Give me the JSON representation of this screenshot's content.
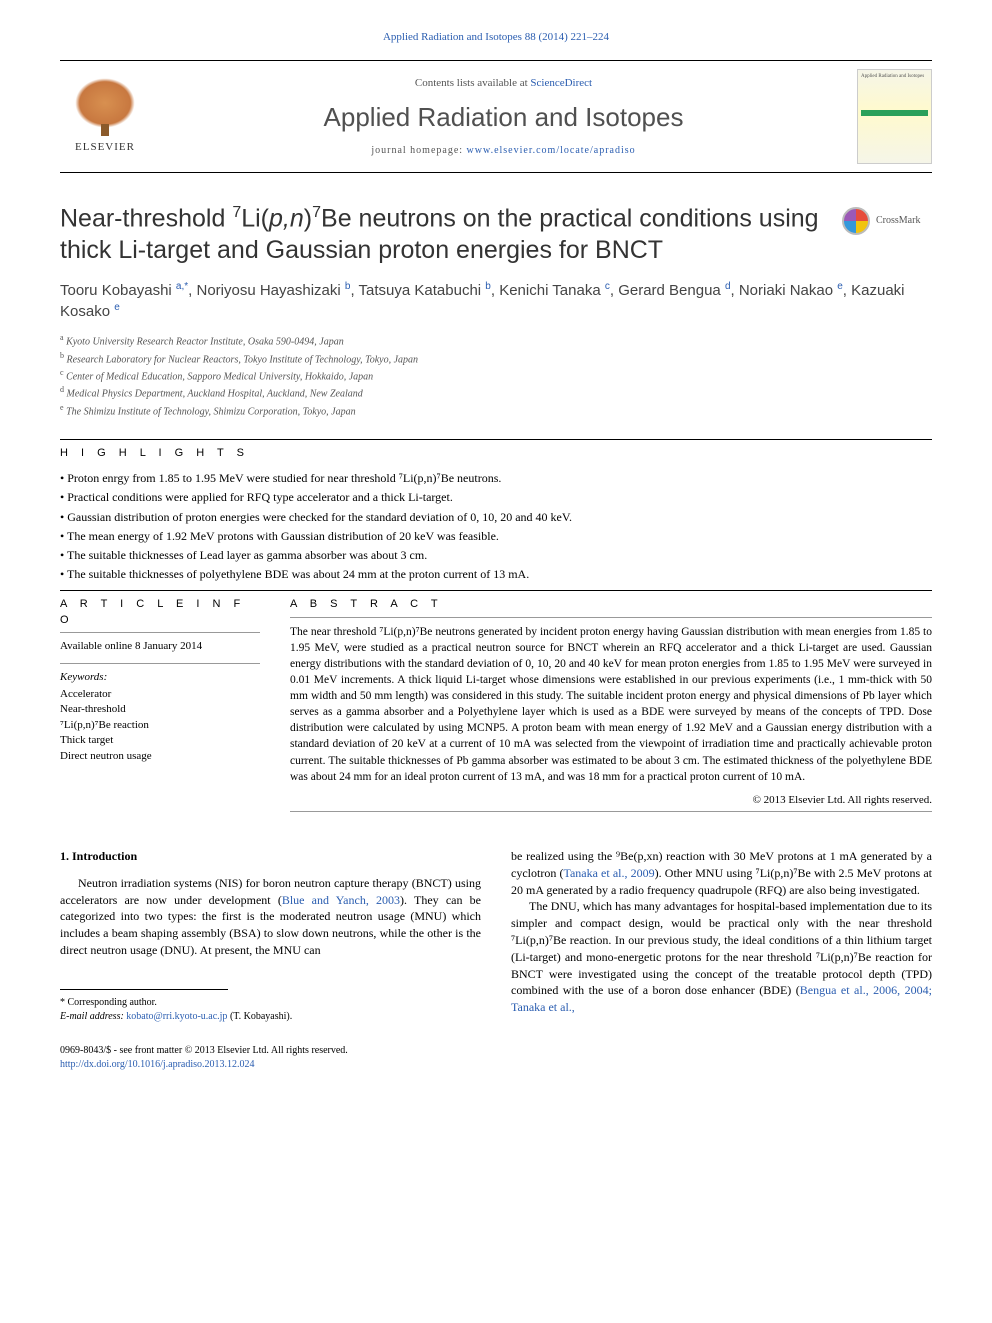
{
  "topLink": "Applied Radiation and Isotopes 88 (2014) 221–224",
  "header": {
    "contentsLine": "Contents lists available at ",
    "contentsSource": "ScienceDirect",
    "journalName": "Applied Radiation and Isotopes",
    "homepageLabel": "journal homepage: ",
    "homepageUrl": "www.elsevier.com/locate/apradiso",
    "publisher": "ELSEVIER",
    "coverLabel": "Applied Radiation and Isotopes"
  },
  "crossmark": "CrossMark",
  "title": {
    "pre": "Near-threshold ",
    "sup1": "7",
    "mid1": "Li(",
    "ital1": "p,n",
    "mid2": ")",
    "sup2": "7",
    "post": "Be neutrons on the practical conditions using thick Li-target and Gaussian proton energies for BNCT"
  },
  "authors": {
    "a1": "Tooru Kobayashi",
    "a1sup": "a,*",
    "a2": "Noriyosu Hayashizaki",
    "a2sup": "b",
    "a3": "Tatsuya Katabuchi",
    "a3sup": "b",
    "a4": "Kenichi Tanaka",
    "a4sup": "c",
    "a5": "Gerard Bengua",
    "a5sup": "d",
    "a6": "Noriaki Nakao",
    "a6sup": "e",
    "a7": "Kazuaki Kosako",
    "a7sup": "e"
  },
  "affiliations": [
    {
      "sup": "a",
      "text": "Kyoto University Research Reactor Institute, Osaka 590-0494, Japan"
    },
    {
      "sup": "b",
      "text": "Research Laboratory for Nuclear Reactors, Tokyo Institute of Technology, Tokyo, Japan"
    },
    {
      "sup": "c",
      "text": "Center of Medical Education, Sapporo Medical University, Hokkaido, Japan"
    },
    {
      "sup": "d",
      "text": "Medical Physics Department, Auckland Hospital, Auckland, New Zealand"
    },
    {
      "sup": "e",
      "text": "The Shimizu Institute of Technology, Shimizu Corporation, Tokyo, Japan"
    }
  ],
  "highlightsLabel": "H I G H L I G H T S",
  "highlights": [
    "Proton enrgy from 1.85 to 1.95 MeV were studied for near threshold ⁷Li(p,n)⁷Be neutrons.",
    "Practical conditions were applied for RFQ type accelerator and a thick Li-target.",
    "Gaussian distribution of proton energies were checked for the standard deviation of 0, 10, 20 and 40 keV.",
    "The mean energy of 1.92 MeV protons with Gaussian distribution of 20 keV was feasible.",
    "The suitable thicknesses of Lead layer as gamma absorber was about 3 cm.",
    "The suitable thicknesses of polyethylene BDE was about 24 mm at the proton current of 13 mA."
  ],
  "articleInfo": {
    "heading": "A R T I C L E  I N F O",
    "onlineDate": "Available online 8 January 2014",
    "keywordsLabel": "Keywords:",
    "keywords": [
      "Accelerator",
      "Near-threshold",
      "⁷Li(p,n)⁷Be reaction",
      "Thick target",
      "Direct neutron usage"
    ]
  },
  "abstract": {
    "heading": "A B S T R A C T",
    "text": "The near threshold ⁷Li(p,n)⁷Be neutrons generated by incident proton energy having Gaussian distribution with mean energies from 1.85 to 1.95 MeV, were studied as a practical neutron source for BNCT wherein an RFQ accelerator and a thick Li-target are used. Gaussian energy distributions with the standard deviation of 0, 10, 20 and 40 keV for mean proton energies from 1.85 to 1.95 MeV were surveyed in 0.01 MeV increments. A thick liquid Li-target whose dimensions were established in our previous experiments (i.e., 1 mm-thick with 50 mm width and 50 mm length) was considered in this study. The suitable incident proton energy and physical dimensions of Pb layer which serves as a gamma absorber and a Polyethylene layer which is used as a BDE were surveyed by means of the concepts of TPD. Dose distribution were calculated by using MCNP5. A proton beam with mean energy of 1.92 MeV and a Gaussian energy distribution with a standard deviation of 20 keV at a current of 10 mA was selected from the viewpoint of irradiation time and practically achievable proton current. The suitable thicknesses of Pb gamma absorber was estimated to be about 3 cm. The estimated thickness of the polyethylene BDE was about 24 mm for an ideal proton current of 13 mA, and was 18 mm for a practical proton current of 10 mA.",
    "copyright": "© 2013 Elsevier Ltd. All rights reserved."
  },
  "body": {
    "introHeading": "1.  Introduction",
    "leftPara1": "Neutron irradiation systems (NIS) for boron neutron capture therapy (BNCT) using accelerators are now under development (",
    "leftRef1": "Blue and Yanch, 2003",
    "leftPara1b": "). They can be categorized into two types: the first is the moderated neutron usage (MNU) which includes a beam shaping assembly (BSA) to slow down neutrons, while the other is the direct neutron usage (DNU). At present, the MNU can",
    "rightPara1a": "be realized using the ⁹Be(p,xn) reaction with 30 MeV protons at 1 mA generated by a cyclotron (",
    "rightRef1": "Tanaka et al., 2009",
    "rightPara1b": "). Other MNU using ⁷Li(p,n)⁷Be with 2.5 MeV protons at 20 mA generated by a radio frequency quadrupole (RFQ) are also being investigated.",
    "rightPara2": "The DNU, which has many advantages for hospital-based implementation due to its simpler and compact design, would be practical only with the near threshold ⁷Li(p,n)⁷Be reaction. In our previous study, the ideal conditions of a thin lithium target (Li-target) and mono-energetic protons for the near threshold ⁷Li(p,n)⁷Be reaction for BNCT were investigated using the concept of the treatable protocol depth (TPD) combined with the use of a boron dose enhancer (BDE) (",
    "rightRef2": "Bengua et al., 2006, 2004; Tanaka et al.,"
  },
  "footnote": {
    "corrLabel": "* Corresponding author.",
    "emailLabel": "E-mail address: ",
    "email": "kobato@rri.kyoto-u.ac.jp",
    "emailSuffix": " (T. Kobayashi)."
  },
  "footer": {
    "issn": "0969-8043/$ - see front matter © 2013 Elsevier Ltd. All rights reserved.",
    "doi": "http://dx.doi.org/10.1016/j.apradiso.2013.12.024"
  },
  "colors": {
    "link": "#2a5db0",
    "text": "#000000",
    "grayText": "#555555"
  }
}
